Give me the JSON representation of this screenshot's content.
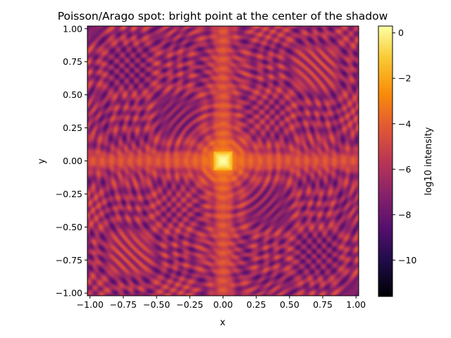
{
  "chart_data": {
    "type": "heatmap",
    "title": "Poisson/Arago spot: bright point at the center of the shadow",
    "xlabel": "x",
    "ylabel": "y",
    "xlim": [
      -1.02,
      1.02
    ],
    "ylim": [
      -1.02,
      1.02
    ],
    "xticks": [
      -1.0,
      -0.75,
      -0.5,
      -0.25,
      0.0,
      0.25,
      0.5,
      0.75,
      1.0
    ],
    "xtick_labels": [
      "−1.00",
      "−0.75",
      "−0.50",
      "−0.25",
      "0.00",
      "0.25",
      "0.50",
      "0.75",
      "1.00"
    ],
    "yticks": [
      -1.0,
      -0.75,
      -0.5,
      -0.25,
      0.0,
      0.25,
      0.5,
      0.75,
      1.0
    ],
    "ytick_labels": [
      "−1.00",
      "−0.75",
      "−0.50",
      "−0.25",
      "0.00",
      "0.25",
      "0.50",
      "0.75",
      "1.00"
    ],
    "colorbar": {
      "label": "log10 intensity",
      "colormap": "inferno",
      "range": [
        -11.6,
        0.3
      ],
      "ticks": [
        -10,
        -8,
        -6,
        -4,
        -2,
        0
      ],
      "tick_labels": [
        "−10",
        "−8",
        "−6",
        "−4",
        "−2",
        "0"
      ]
    },
    "features": {
      "center_value": 0.3,
      "cross_arm_value": -4.5,
      "background_value": -6.5,
      "cross_half_width": 0.07
    },
    "grid": false
  }
}
